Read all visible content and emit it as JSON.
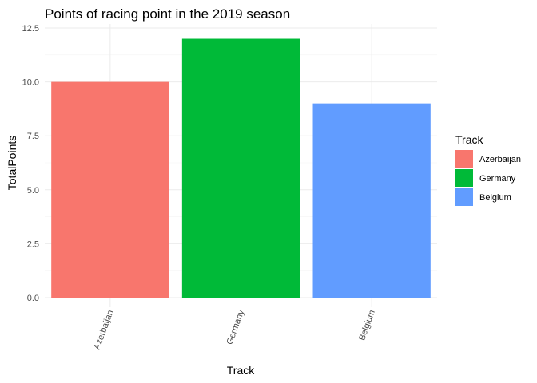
{
  "chart_data": {
    "type": "bar",
    "title": "Points of racing point in the 2019 season",
    "xlabel": "Track",
    "ylabel": "TotalPoints",
    "categories": [
      "Azerbaijan",
      "Germany",
      "Belgium"
    ],
    "values": [
      10,
      12,
      9
    ],
    "colors": [
      "#F8766D",
      "#00BA38",
      "#619CFF"
    ],
    "ylim": [
      0,
      12.5
    ],
    "yticks": [
      0,
      2.5,
      5,
      7.5,
      10,
      12.5
    ],
    "ytick_labels": [
      "0.0",
      "2.5",
      "5.0",
      "7.5",
      "10.0",
      "12.5"
    ],
    "grid": true,
    "legend": {
      "title": "Track",
      "placement": "right",
      "entries": [
        "Azerbaijan",
        "Germany",
        "Belgium"
      ]
    },
    "x_tick_rotation_deg": 70
  }
}
